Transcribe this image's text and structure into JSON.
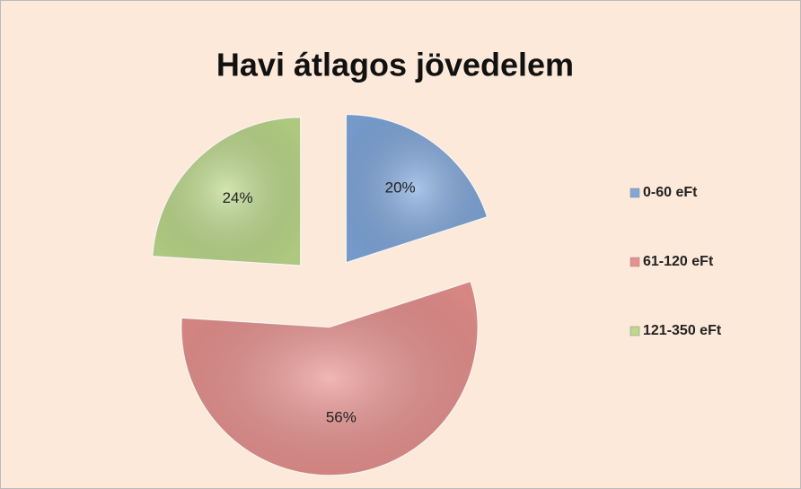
{
  "chart_data": {
    "type": "pie",
    "title": "Havi átlagos jövedelem",
    "categories": [
      "0-60 eFt",
      "61-120 eFt",
      "121-350 eFt"
    ],
    "values": [
      20,
      56,
      24
    ],
    "value_labels": [
      "20%",
      "56%",
      "24%"
    ],
    "colors": [
      "#7fa7dc",
      "#e8918e",
      "#bcd98a"
    ],
    "legend": "right",
    "exploded": true
  }
}
